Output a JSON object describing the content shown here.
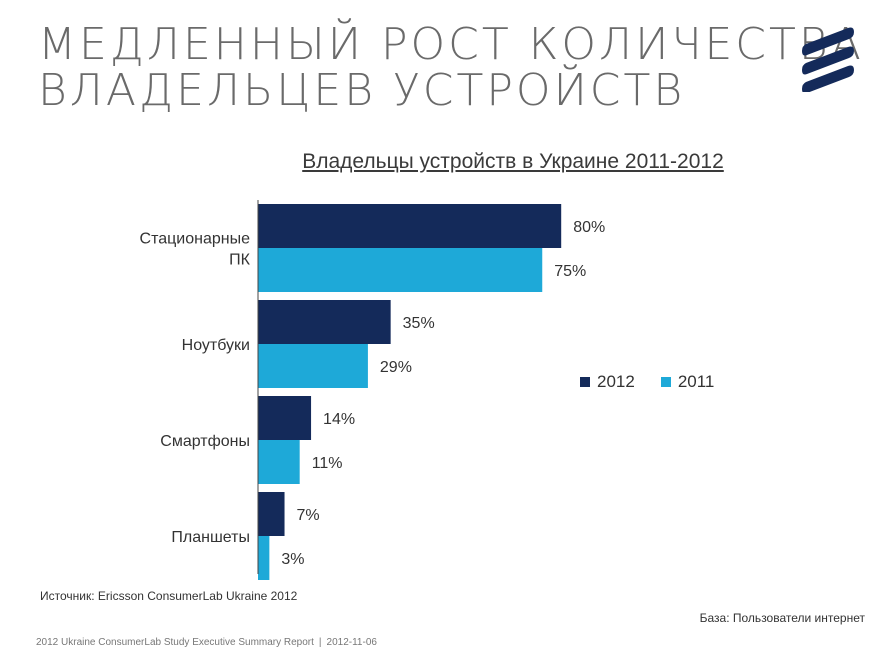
{
  "slide": {
    "title_lines": [
      "Медленный рост количества",
      "владельцев устройств"
    ],
    "source_note": "Источник: Ericsson ConsumerLab Ukraine 2012",
    "base_note": "База: Пользователи интернет",
    "footer_report": "2012 Ukraine ConsumerLab Study Executive Summary Report",
    "footer_separator": "|",
    "footer_date": "2012-11-06",
    "logo_icon": "ericsson-logo-icon"
  },
  "colors": {
    "series_2012": "#142a5a",
    "series_2011": "#1ea9d8",
    "axis": "#444444",
    "title_text": "#6a6a6a",
    "logo": "#142a5a"
  },
  "chart_data": {
    "type": "bar",
    "orientation": "horizontal",
    "title": "Владельцы устройств в Украине 2011-2012",
    "categories": [
      [
        "Стационарные",
        "ПК"
      ],
      [
        "Ноутбуки"
      ],
      [
        "Смартфоны"
      ],
      [
        "Планшеты"
      ]
    ],
    "series": [
      {
        "name": "2012",
        "values": [
          80,
          35,
          14,
          7
        ],
        "labels": [
          "80%",
          "35%",
          "14%",
          "7%"
        ]
      },
      {
        "name": "2011",
        "values": [
          75,
          29,
          11,
          3
        ],
        "labels": [
          "75%",
          "29%",
          "11%",
          "3%"
        ]
      }
    ],
    "unit": "%",
    "xlim": [
      0,
      100
    ],
    "grid": false,
    "legend_position": "right"
  }
}
